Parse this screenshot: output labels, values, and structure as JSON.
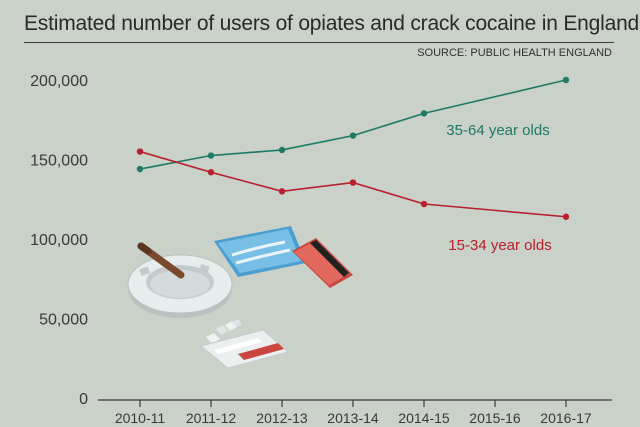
{
  "title": "Estimated number of users of opiates and crack cocaine in England",
  "source": "SOURCE: PUBLIC HEALTH ENGLAND",
  "chart_data": {
    "type": "line",
    "title": "Estimated number of users of opiates and crack cocaine in England",
    "xlabel": "",
    "ylabel": "",
    "categories": [
      "2010-11",
      "2011-12",
      "2012-13",
      "2013-14",
      "2014-15",
      "2015-16",
      "2016-17"
    ],
    "y_ticks": [
      "0",
      "50,000",
      "100,000",
      "150,000",
      "200,000"
    ],
    "ylim": [
      0,
      200000
    ],
    "grid": false,
    "legend": "inline labels",
    "series": [
      {
        "name": "35-64 year olds",
        "color": "#1e7a65",
        "x": [
          "2010-11",
          "2011-12",
          "2012-13",
          "2013-14",
          "2014-15",
          "2016-17"
        ],
        "values": [
          144000,
          152500,
          156000,
          165000,
          179000,
          200000
        ]
      },
      {
        "name": "15-34 year olds",
        "color": "#b7202c",
        "x": [
          "2010-11",
          "2011-12",
          "2012-13",
          "2013-14",
          "2014-15",
          "2016-17"
        ],
        "values": [
          155000,
          142000,
          130000,
          135500,
          122000,
          114000
        ]
      }
    ]
  }
}
